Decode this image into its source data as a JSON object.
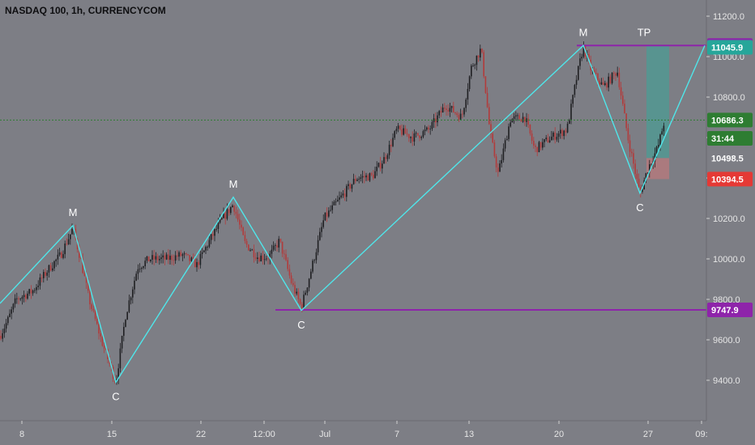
{
  "header": {
    "title": "NASDAQ 100, 1h, CURRENCYCOM"
  },
  "colors": {
    "background": "#7d7e85",
    "up_candle": "#1f1f22",
    "down_candle": "#b23b3b",
    "wave_line": "#4fe6ea",
    "support_resistance": "#8e24aa",
    "price_line": "#2e7d32",
    "target_zone": "#4c9c94",
    "stop_zone": "#c9787a",
    "axis_text": "#e6e6e6"
  },
  "chart_data": {
    "type": "candlestick",
    "title": "NASDAQ 100, 1h, CURRENCYCOM",
    "grid": false,
    "ylim": [
      9200,
      11300
    ],
    "y_ticks": [
      9400,
      9600,
      9800,
      10000,
      10200,
      10400,
      10600,
      10800,
      11000,
      11200
    ],
    "y_tick_labels": [
      "9400.0",
      "9600.0",
      "9800.0",
      "10000.0",
      "10200.0",
      "10400.0",
      "10600.0",
      "10800.0",
      "11000.0",
      "11200.0"
    ],
    "x_tick_labels": [
      "8",
      "15",
      "22",
      "12:00",
      "Jul",
      "7",
      "13",
      "20",
      "27",
      "09:"
    ],
    "price_path": [
      [
        0,
        9620
      ],
      [
        10,
        9700
      ],
      [
        20,
        9800
      ],
      [
        40,
        9840
      ],
      [
        60,
        9950
      ],
      [
        75,
        10020
      ],
      [
        90,
        10150
      ],
      [
        100,
        9990
      ],
      [
        110,
        9800
      ],
      [
        125,
        9600
      ],
      [
        143,
        9390
      ],
      [
        155,
        9720
      ],
      [
        170,
        9960
      ],
      [
        185,
        10000
      ],
      [
        205,
        10000
      ],
      [
        225,
        10020
      ],
      [
        243,
        9970
      ],
      [
        260,
        10100
      ],
      [
        275,
        10200
      ],
      [
        288,
        10270
      ],
      [
        302,
        10080
      ],
      [
        318,
        10010
      ],
      [
        332,
        10010
      ],
      [
        345,
        10090
      ],
      [
        360,
        9880
      ],
      [
        372,
        9760
      ],
      [
        385,
        9960
      ],
      [
        400,
        10200
      ],
      [
        420,
        10300
      ],
      [
        440,
        10400
      ],
      [
        460,
        10410
      ],
      [
        475,
        10500
      ],
      [
        490,
        10640
      ],
      [
        510,
        10600
      ],
      [
        530,
        10640
      ],
      [
        550,
        10760
      ],
      [
        570,
        10700
      ],
      [
        582,
        10950
      ],
      [
        594,
        11040
      ],
      [
        605,
        10620
      ],
      [
        615,
        10420
      ],
      [
        630,
        10690
      ],
      [
        648,
        10700
      ],
      [
        660,
        10540
      ],
      [
        680,
        10600
      ],
      [
        700,
        10640
      ],
      [
        712,
        10900
      ],
      [
        720,
        11050
      ],
      [
        730,
        10930
      ],
      [
        745,
        10850
      ],
      [
        762,
        10930
      ],
      [
        775,
        10600
      ],
      [
        790,
        10320
      ],
      [
        800,
        10450
      ],
      [
        812,
        10550
      ],
      [
        820,
        10680
      ]
    ],
    "wave_labels": [
      {
        "text": "M",
        "x": 90,
        "price": 10165
      },
      {
        "text": "C",
        "x": 143,
        "price": 9390
      },
      {
        "text": "M",
        "x": 288,
        "price": 10305
      },
      {
        "text": "C",
        "x": 372,
        "price": 9745
      },
      {
        "text": "M",
        "x": 720,
        "price": 11055
      },
      {
        "text": "C",
        "x": 790,
        "price": 10325
      },
      {
        "text": "TP",
        "x": 800,
        "price": 11055
      }
    ],
    "wave_path": [
      [
        0,
        9780
      ],
      [
        90,
        10165
      ],
      [
        143,
        9390
      ],
      [
        288,
        10305
      ],
      [
        372,
        9745
      ],
      [
        720,
        11055
      ],
      [
        790,
        10325
      ],
      [
        870,
        11055
      ]
    ],
    "hlines": [
      {
        "price": 11055,
        "x_start": 712,
        "label": "11055.0",
        "style": "resistance"
      },
      {
        "price": 9747.9,
        "x_start": 340,
        "label": "9747.9",
        "style": "support"
      },
      {
        "price": 10686.3,
        "x_start": 0,
        "label": "10686.3",
        "style": "current",
        "dashed": true
      }
    ],
    "axis_badges": [
      {
        "text": "11045.9",
        "price": 11045.9,
        "color": "#26a69a"
      },
      {
        "text": "31:44",
        "price": 10596,
        "color": "#2e7d32"
      },
      {
        "text": "10498.5",
        "price": 10498.5,
        "color": "#7d7e85"
      },
      {
        "text": "10394.5",
        "price": 10394.5,
        "color": "#e53935"
      }
    ],
    "target_zone": {
      "x_start": 798,
      "x_end": 826,
      "top": 11055,
      "bottom": 10498.5
    },
    "stop_zone": {
      "x_start": 798,
      "x_end": 826,
      "top": 10498.5,
      "bottom": 10394.5
    }
  }
}
